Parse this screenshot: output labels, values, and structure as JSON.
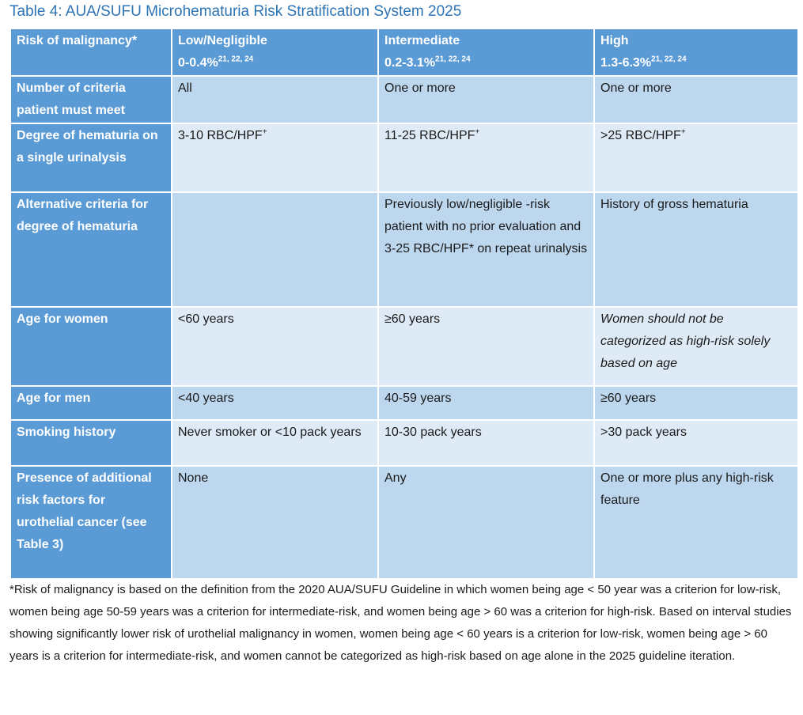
{
  "title": "Table 4: AUA/SUFU Microhematuria Risk Stratification System 2025",
  "table": {
    "header": [
      {
        "text": "Risk of malignancy*"
      },
      {
        "label": "Low/Negligible",
        "range": "0-0.4%",
        "refs": "21, 22, 24"
      },
      {
        "label": "Intermediate",
        "range": "0.2-3.1%",
        "refs": "21, 22, 24"
      },
      {
        "label": "High",
        "range": "1.3-6.3%",
        "refs": "21, 22, 24"
      }
    ],
    "rows": [
      [
        "Number of criteria patient must meet",
        "All",
        "One or more",
        "One or more"
      ],
      [
        "Degree of hematuria on a single urinalysis",
        {
          "text": "3-10 RBC/HPF",
          "sup": "+"
        },
        {
          "text": "11-25 RBC/HPF",
          "sup": "+"
        },
        {
          "text": ">25 RBC/HPF",
          "sup": "+"
        }
      ],
      [
        "Alternative criteria for degree of hematuria",
        null,
        "Previously low/negligible -risk patient with no prior evaluation and 3-25 RBC/HPF* on repeat urinalysis",
        "History of gross hematuria"
      ],
      [
        "Age for women",
        "<60 years",
        "≥60 years",
        {
          "text": "Women should not be categorized as high-risk solely based on age",
          "italic": true
        }
      ],
      [
        "Age for men",
        "<40 years",
        "40-59 years",
        "≥60 years"
      ],
      [
        "Smoking history",
        "Never smoker or <10 pack years",
        "10-30 pack years",
        ">30 pack years"
      ],
      [
        "Presence of additional risk factors for urothelial cancer (see Table 3)",
        "None",
        "Any",
        "One or more plus any high-risk feature"
      ]
    ]
  },
  "footnote": "*Risk of malignancy is based on the definition from the 2020 AUA/SUFU Guideline in which women being age < 50 year was a criterion for low-risk, women being age 50-59 years was a criterion for intermediate-risk, and women being age > 60 was a criterion for high-risk. Based on interval studies showing significantly lower risk of urothelial malignancy in women, women being age < 60 years is a criterion for low-risk, women being age > 60 years is a criterion for intermediate-risk, and women cannot be categorized as high-risk based on age alone in the 2025 guideline iteration."
}
